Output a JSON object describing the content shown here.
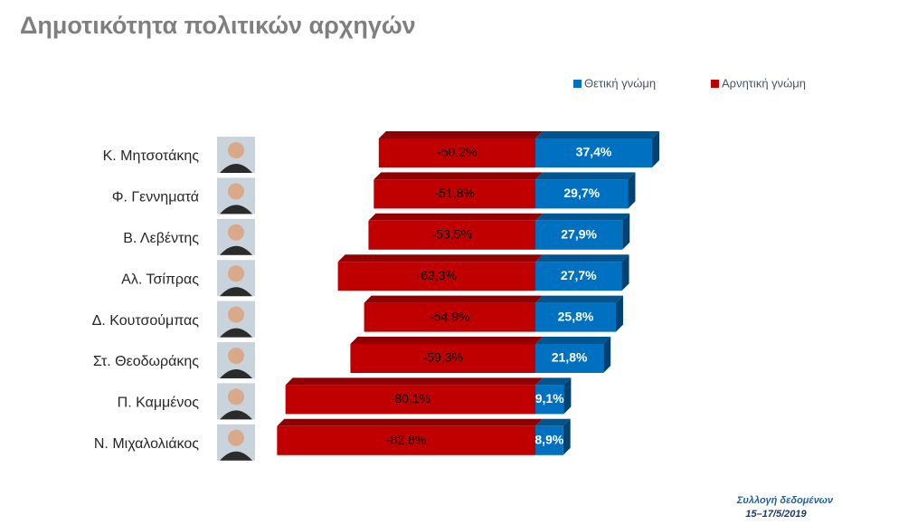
{
  "chart_data": {
    "type": "bar",
    "orientation": "horizontal",
    "title": "Δημοτικότητα πολιτικών αρχηγών",
    "categories": [
      "Κ. Μητσοτάκης",
      "Φ. Γεννηματά",
      "Β. Λεβέντης",
      "Αλ. Τσίπρας",
      "Δ. Κουτσούμπας",
      "Στ. Θεοδωράκης",
      "Π. Καμμένος",
      "Ν. Μιχαλολιάκος"
    ],
    "series": [
      {
        "name": "Θετική γνώμη",
        "color": "#0070c0",
        "values": [
          37.4,
          29.7,
          27.9,
          27.7,
          25.8,
          21.8,
          9.1,
          8.9
        ],
        "value_labels": [
          "37,4%",
          "29,7%",
          "27,9%",
          "27,7%",
          "25,8%",
          "21,8%",
          "9,1%",
          "8,9%"
        ]
      },
      {
        "name": "Αρνητική γνώμη",
        "color": "#c00000",
        "values": [
          -50.2,
          -51.8,
          -53.5,
          -63.3,
          -54.9,
          -59.3,
          -80.1,
          -82.8
        ],
        "value_labels": [
          "-50,2%",
          "-51,8%",
          "-53,5%",
          "-63,3%",
          "-54,9%",
          "-59,3%",
          "-80,1%",
          "-82,8%"
        ]
      }
    ],
    "source": [
      "Συλλογή δεδομένων",
      "15–17/5/2019"
    ]
  }
}
